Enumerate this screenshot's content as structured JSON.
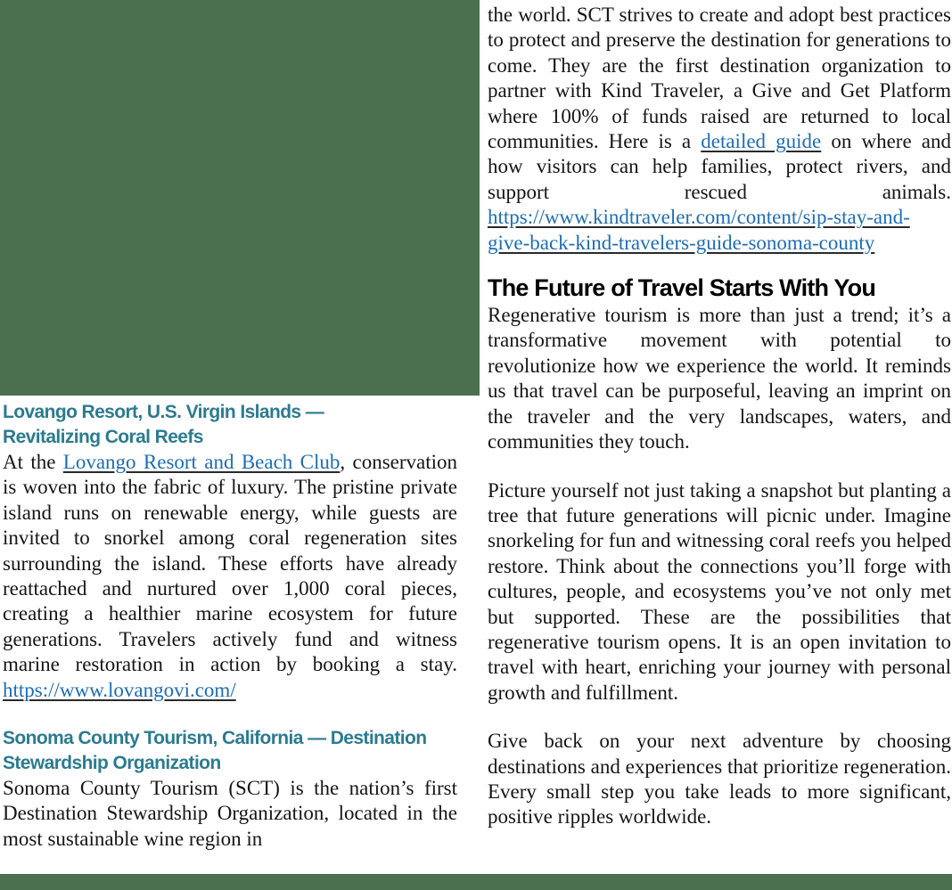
{
  "page": {
    "background": "#ffffff",
    "accent_green": "#4a7050",
    "heading_teal": "#2b7b90",
    "link_blue": "#1e6db6",
    "body_text_color": "#151515"
  },
  "left_column": {
    "sections": [
      {
        "heading": "Lovango Resort, U.S. Virgin Islands —\nRevitalizing Coral Reefs",
        "paragraphs": [
          {
            "segments": [
              {
                "text": "At the "
              },
              {
                "text": "Lovango Resort and Beach Club",
                "link": true
              },
              {
                "text": ", conservation is woven into the fabric of luxury. The pristine private island runs on renewable energy, while guests are invited to snorkel among coral regeneration sites surrounding the island. These efforts have already reattached and nurtured over 1,000 coral pieces, creating a healthier marine ecosystem for future generations. Travelers actively fund and witness marine restoration in action by booking a stay. "
              },
              {
                "text": "https://www.lovangovi.com/",
                "link": true
              }
            ]
          }
        ]
      },
      {
        "heading": "Sonoma County Tourism, California — Destination\nStewardship Organization",
        "paragraphs": [
          {
            "segments": [
              {
                "text": "Sonoma County Tourism (SCT) is the nation’s first Destination Stewardship Organization, located in the most sustainable wine region in"
              }
            ]
          }
        ]
      }
    ]
  },
  "right_column": {
    "continuation_paragraphs": [
      {
        "segments": [
          {
            "text": "the world. SCT strives to create and adopt best practices to protect and preserve the destination for generations to come. They are the first destination organization to partner with Kind Traveler, a Give and Get Platform where 100% of funds raised are returned to local communities. Here is a "
          },
          {
            "text": "detailed guide",
            "link": true
          },
          {
            "text": " on where and how visitors can help families, protect rivers, and support rescued animals. "
          },
          {
            "text": "https://www.kindtraveler.com/content/sip-stay-and-give-back-kind-travelers-guide-sonoma-county",
            "link": true
          }
        ]
      }
    ],
    "section": {
      "heading": "The Future of Travel Starts With You",
      "paragraphs": [
        {
          "segments": [
            {
              "text": "Regenerative tourism is more than just a trend; it’s a transformative movement with potential to revolutionize how we experience the world. It reminds us that travel can be purposeful, leaving an imprint on the traveler and the very landscapes, waters, and communities they touch."
            }
          ]
        },
        {
          "segments": [
            {
              "text": "Picture yourself not just taking a snapshot but planting a tree that future generations will picnic under. Imagine snorkeling for fun and witnessing coral reefs you helped restore. Think about the connections you’ll forge with cultures, people, and ecosystems you’ve not only met but supported. These are the possibilities that regenerative tourism opens. It is an open invitation to travel with heart, enriching your journey with personal growth and fulfillment."
            }
          ]
        },
        {
          "segments": [
            {
              "text": "Give back on your next adventure by choosing destinations and experiences that prioritize regeneration. Every small step you take leads to more significant, positive ripples worldwide."
            }
          ]
        }
      ]
    }
  }
}
